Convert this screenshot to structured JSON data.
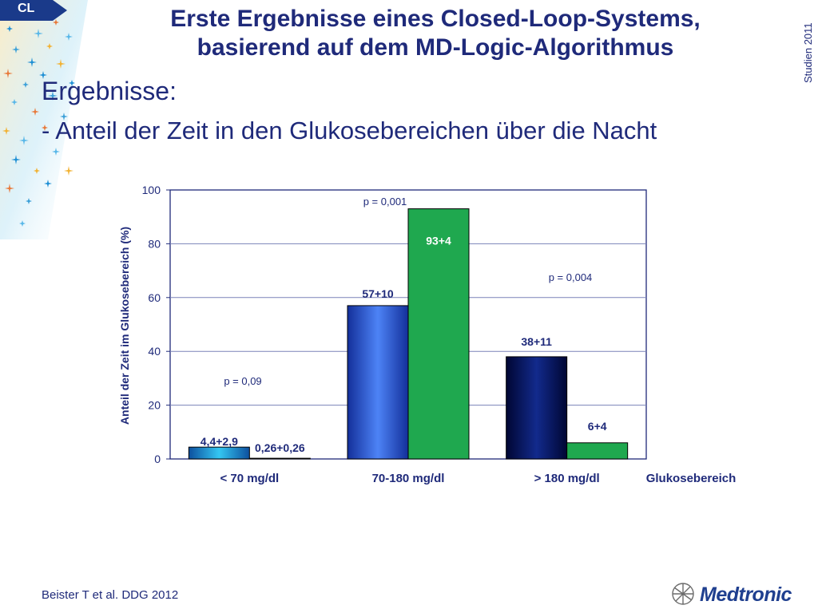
{
  "badge": "CL",
  "title_line1": "Erste Ergebnisse eines Closed-Loop-Systems,",
  "title_line2": "basierend auf dem MD-Logic-Algorithmus",
  "side_label": "Studien 2011",
  "heading": "Ergebnisse:",
  "subheading": "- Anteil der Zeit in den Glukosebereichen über die Nacht",
  "footer": "Beister T et al. DDG 2012",
  "logo_text": "Medtronic",
  "chart_data": {
    "type": "bar",
    "ylabel": "Anteil der Zeit im Glukosebereich (%)",
    "xlabel": "Glukosebereich",
    "ylim": [
      0,
      100
    ],
    "yticks": [
      "0",
      "20",
      "40",
      "60",
      "80",
      "100"
    ],
    "categories": [
      "< 70 mg/dl",
      "70-180 mg/dl",
      "> 180 mg/dl"
    ],
    "series": [
      {
        "values": [
          4.4,
          57,
          38
        ],
        "labels": [
          "4,4+2,9",
          "57+10",
          "38+11"
        ]
      },
      {
        "values": [
          0.26,
          93,
          6
        ],
        "labels": [
          "0,26+0,26",
          "93+4",
          "6+4"
        ]
      }
    ],
    "p_values": [
      "p = 0,09",
      "p = 0,001",
      "p = 0,004"
    ],
    "grid": true,
    "colors": {
      "series1": [
        "#1aaee0",
        "#2d5be3",
        "#0b1a6e"
      ],
      "series2": "#1fa84f",
      "text": "#1f2a7a"
    }
  }
}
